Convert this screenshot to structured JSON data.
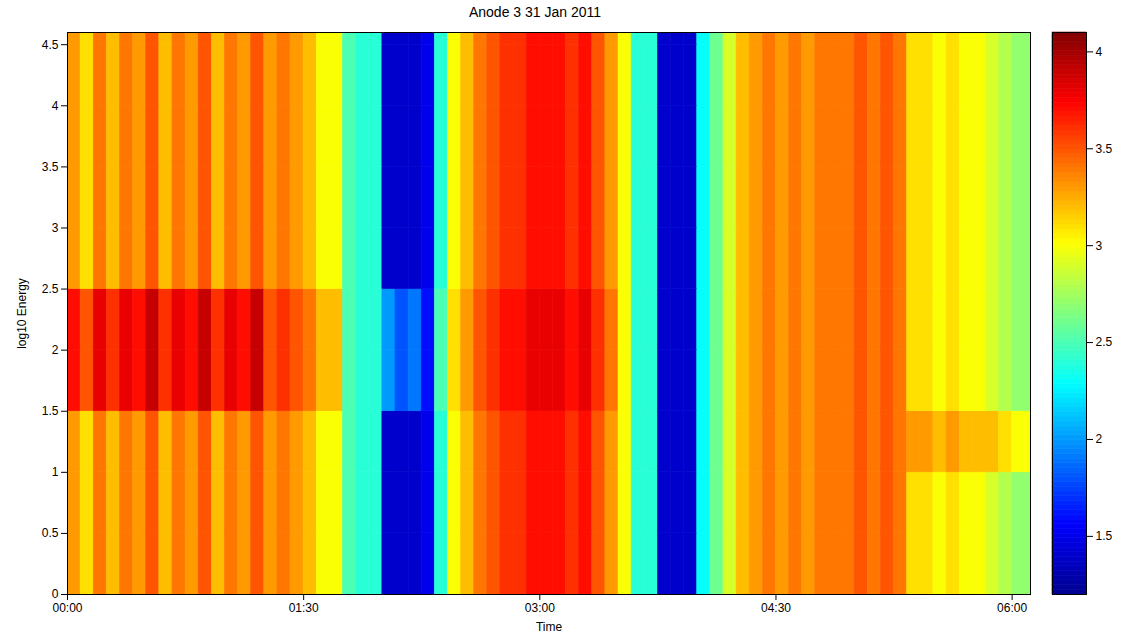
{
  "chart_data": {
    "type": "heatmap",
    "title": "Anode 3 31 Jan 2011",
    "xlabel": "Time",
    "ylabel": "log10 Energy",
    "xlim": [
      0,
      367
    ],
    "xticks": [
      {
        "value": 0,
        "label": "00:00"
      },
      {
        "value": 90,
        "label": "01:30"
      },
      {
        "value": 180,
        "label": "03:00"
      },
      {
        "value": 270,
        "label": "04:30"
      },
      {
        "value": 360,
        "label": "06:00"
      }
    ],
    "ylim": [
      0,
      4.6
    ],
    "yticks": [
      0,
      0.5,
      1,
      1.5,
      2,
      2.5,
      3,
      3.5,
      4,
      4.5
    ],
    "cells": {
      "x": [
        0,
        5,
        10,
        15,
        20,
        25,
        30,
        35,
        40,
        45,
        50,
        55,
        60,
        65,
        70,
        75,
        80,
        85,
        90,
        95,
        100,
        105,
        110,
        115,
        120,
        125,
        130,
        135,
        140,
        145,
        150,
        155,
        160,
        165,
        170,
        175,
        180,
        185,
        190,
        195,
        200,
        205,
        210,
        215,
        220,
        225,
        230,
        235,
        240,
        245,
        250,
        255,
        260,
        265,
        270,
        275,
        280,
        285,
        290,
        295,
        300,
        305,
        310,
        315,
        320,
        325,
        330,
        335,
        340,
        345,
        350,
        355,
        360,
        365,
        370
      ],
      "y": [
        0,
        0.5,
        1,
        1.5,
        2,
        2.5,
        3,
        3.5,
        4,
        4.5,
        4.6
      ],
      "values": [
        [
          3.3,
          3.1,
          3.4,
          3.2,
          3.4,
          3.3,
          3.5,
          3.2,
          3.4,
          3.3,
          3.5,
          3.2,
          3.4,
          3.3,
          3.5,
          3.3,
          3.4,
          3.3,
          3.2,
          3.0,
          3.0,
          2.5,
          2.4,
          2.4,
          1.4,
          1.4,
          1.4,
          1.5,
          2.4,
          3.0,
          3.2,
          3.4,
          3.5,
          3.6,
          3.6,
          3.7,
          3.7,
          3.7,
          3.6,
          3.7,
          3.5,
          3.3,
          3.0,
          2.4,
          2.4,
          1.4,
          1.4,
          1.4,
          2.3,
          2.6,
          2.9,
          3.2,
          3.3,
          3.4,
          3.3,
          3.4,
          3.3,
          3.4,
          3.4,
          3.4,
          3.5,
          3.4,
          3.5,
          3.4,
          3.1,
          3.1,
          3.0,
          3.1,
          3.0,
          3.0,
          2.9,
          2.8,
          2.7,
          2.7
        ],
        [
          3.3,
          3.1,
          3.4,
          3.2,
          3.4,
          3.3,
          3.5,
          3.2,
          3.4,
          3.3,
          3.5,
          3.2,
          3.4,
          3.3,
          3.5,
          3.3,
          3.4,
          3.3,
          3.2,
          3.0,
          3.0,
          2.5,
          2.4,
          2.4,
          1.4,
          1.4,
          1.4,
          1.5,
          2.4,
          3.0,
          3.2,
          3.4,
          3.5,
          3.6,
          3.6,
          3.7,
          3.7,
          3.7,
          3.6,
          3.7,
          3.5,
          3.3,
          3.0,
          2.4,
          2.4,
          1.4,
          1.4,
          1.4,
          2.3,
          2.6,
          2.9,
          3.2,
          3.3,
          3.4,
          3.3,
          3.4,
          3.3,
          3.4,
          3.4,
          3.4,
          3.5,
          3.4,
          3.5,
          3.4,
          3.1,
          3.1,
          3.0,
          3.1,
          3.0,
          3.0,
          2.9,
          2.8,
          2.7,
          2.7
        ],
        [
          3.3,
          3.1,
          3.4,
          3.2,
          3.4,
          3.3,
          3.5,
          3.2,
          3.4,
          3.3,
          3.5,
          3.2,
          3.4,
          3.3,
          3.5,
          3.3,
          3.4,
          3.3,
          3.2,
          3.0,
          3.0,
          2.5,
          2.4,
          2.4,
          1.4,
          1.4,
          1.4,
          1.5,
          2.4,
          3.0,
          3.2,
          3.4,
          3.5,
          3.6,
          3.6,
          3.7,
          3.7,
          3.7,
          3.6,
          3.7,
          3.5,
          3.3,
          3.0,
          2.4,
          2.4,
          1.4,
          1.4,
          1.4,
          2.3,
          2.6,
          2.9,
          3.2,
          3.3,
          3.4,
          3.3,
          3.4,
          3.3,
          3.4,
          3.4,
          3.4,
          3.5,
          3.4,
          3.5,
          3.4,
          3.3,
          3.3,
          3.2,
          3.3,
          3.2,
          3.2,
          3.2,
          3.1,
          3.0,
          3.0
        ],
        [
          3.7,
          3.5,
          3.8,
          3.6,
          3.8,
          3.7,
          3.9,
          3.6,
          3.8,
          3.7,
          3.9,
          3.6,
          3.8,
          3.7,
          3.9,
          3.5,
          3.6,
          3.5,
          3.4,
          3.2,
          3.2,
          2.5,
          2.4,
          2.4,
          2.0,
          1.8,
          1.9,
          1.6,
          2.5,
          3.1,
          3.3,
          3.5,
          3.6,
          3.7,
          3.7,
          3.8,
          3.8,
          3.8,
          3.7,
          3.8,
          3.6,
          3.4,
          3.0,
          2.4,
          2.4,
          1.4,
          1.4,
          1.4,
          2.3,
          2.6,
          2.9,
          3.2,
          3.3,
          3.4,
          3.3,
          3.4,
          3.3,
          3.4,
          3.4,
          3.4,
          3.5,
          3.4,
          3.5,
          3.4,
          3.1,
          3.1,
          3.0,
          3.1,
          3.0,
          3.0,
          2.9,
          2.8,
          2.7,
          2.7
        ],
        [
          3.7,
          3.5,
          3.8,
          3.6,
          3.8,
          3.7,
          3.9,
          3.6,
          3.8,
          3.7,
          3.9,
          3.6,
          3.8,
          3.7,
          3.9,
          3.5,
          3.6,
          3.5,
          3.4,
          3.2,
          3.2,
          2.5,
          2.4,
          2.4,
          2.0,
          1.8,
          1.9,
          1.6,
          2.5,
          3.1,
          3.3,
          3.5,
          3.6,
          3.7,
          3.7,
          3.8,
          3.8,
          3.8,
          3.7,
          3.8,
          3.6,
          3.4,
          3.0,
          2.4,
          2.4,
          1.4,
          1.4,
          1.4,
          2.3,
          2.6,
          2.9,
          3.2,
          3.3,
          3.4,
          3.3,
          3.4,
          3.3,
          3.4,
          3.4,
          3.4,
          3.5,
          3.4,
          3.5,
          3.4,
          3.1,
          3.1,
          3.0,
          3.1,
          3.0,
          3.0,
          2.9,
          2.8,
          2.7,
          2.7
        ],
        [
          3.3,
          3.1,
          3.4,
          3.2,
          3.4,
          3.3,
          3.5,
          3.2,
          3.4,
          3.3,
          3.5,
          3.2,
          3.4,
          3.3,
          3.5,
          3.3,
          3.4,
          3.3,
          3.2,
          3.0,
          3.0,
          2.5,
          2.4,
          2.4,
          1.4,
          1.4,
          1.4,
          1.5,
          2.4,
          3.0,
          3.2,
          3.4,
          3.5,
          3.6,
          3.6,
          3.7,
          3.7,
          3.7,
          3.6,
          3.7,
          3.5,
          3.3,
          3.0,
          2.4,
          2.4,
          1.4,
          1.4,
          1.4,
          2.3,
          2.6,
          2.9,
          3.2,
          3.3,
          3.4,
          3.3,
          3.4,
          3.3,
          3.4,
          3.4,
          3.4,
          3.5,
          3.4,
          3.5,
          3.4,
          3.1,
          3.1,
          3.0,
          3.1,
          3.0,
          3.0,
          2.9,
          2.8,
          2.7,
          2.7
        ],
        [
          3.3,
          3.1,
          3.4,
          3.2,
          3.4,
          3.3,
          3.5,
          3.2,
          3.4,
          3.3,
          3.5,
          3.2,
          3.4,
          3.3,
          3.5,
          3.3,
          3.4,
          3.3,
          3.2,
          3.0,
          3.0,
          2.5,
          2.4,
          2.4,
          1.4,
          1.4,
          1.4,
          1.5,
          2.4,
          3.0,
          3.2,
          3.4,
          3.5,
          3.6,
          3.6,
          3.7,
          3.7,
          3.7,
          3.6,
          3.7,
          3.5,
          3.3,
          3.0,
          2.4,
          2.4,
          1.4,
          1.4,
          1.4,
          2.3,
          2.6,
          2.9,
          3.2,
          3.3,
          3.4,
          3.3,
          3.4,
          3.3,
          3.4,
          3.4,
          3.4,
          3.5,
          3.4,
          3.5,
          3.4,
          3.1,
          3.1,
          3.0,
          3.1,
          3.0,
          3.0,
          2.9,
          2.8,
          2.7,
          2.7
        ],
        [
          3.3,
          3.1,
          3.4,
          3.2,
          3.4,
          3.3,
          3.5,
          3.2,
          3.4,
          3.3,
          3.5,
          3.2,
          3.4,
          3.3,
          3.5,
          3.3,
          3.4,
          3.3,
          3.2,
          3.0,
          3.0,
          2.5,
          2.4,
          2.4,
          1.4,
          1.4,
          1.4,
          1.5,
          2.4,
          3.0,
          3.2,
          3.4,
          3.5,
          3.6,
          3.6,
          3.7,
          3.7,
          3.7,
          3.6,
          3.7,
          3.5,
          3.3,
          3.0,
          2.4,
          2.4,
          1.4,
          1.4,
          1.4,
          2.3,
          2.6,
          2.9,
          3.2,
          3.3,
          3.4,
          3.3,
          3.4,
          3.3,
          3.4,
          3.4,
          3.4,
          3.5,
          3.4,
          3.5,
          3.4,
          3.1,
          3.1,
          3.0,
          3.1,
          3.0,
          3.0,
          2.9,
          2.8,
          2.7,
          2.7
        ],
        [
          3.3,
          3.1,
          3.4,
          3.2,
          3.4,
          3.3,
          3.5,
          3.2,
          3.4,
          3.3,
          3.5,
          3.2,
          3.4,
          3.3,
          3.5,
          3.3,
          3.4,
          3.3,
          3.2,
          3.0,
          3.0,
          2.5,
          2.4,
          2.4,
          1.4,
          1.4,
          1.4,
          1.5,
          2.4,
          3.0,
          3.2,
          3.4,
          3.5,
          3.6,
          3.6,
          3.7,
          3.7,
          3.7,
          3.6,
          3.7,
          3.5,
          3.3,
          3.0,
          2.4,
          2.4,
          1.4,
          1.4,
          1.4,
          2.3,
          2.6,
          2.9,
          3.2,
          3.3,
          3.4,
          3.3,
          3.4,
          3.3,
          3.4,
          3.4,
          3.4,
          3.5,
          3.4,
          3.5,
          3.4,
          3.1,
          3.1,
          3.0,
          3.1,
          3.0,
          3.0,
          2.9,
          2.8,
          2.7,
          2.7
        ],
        [
          3.3,
          3.1,
          3.4,
          3.2,
          3.4,
          3.3,
          3.5,
          3.2,
          3.4,
          3.3,
          3.5,
          3.2,
          3.4,
          3.3,
          3.5,
          3.3,
          3.4,
          3.3,
          3.2,
          3.0,
          3.0,
          2.5,
          2.4,
          2.4,
          1.4,
          1.4,
          1.4,
          1.5,
          2.4,
          3.0,
          3.2,
          3.4,
          3.5,
          3.6,
          3.6,
          3.7,
          3.7,
          3.7,
          3.6,
          3.7,
          3.5,
          3.3,
          3.0,
          2.4,
          2.4,
          1.4,
          1.4,
          1.4,
          2.3,
          2.6,
          2.9,
          3.2,
          3.3,
          3.4,
          3.3,
          3.4,
          3.3,
          3.4,
          3.4,
          3.4,
          3.5,
          3.4,
          3.5,
          3.4,
          3.1,
          3.1,
          3.0,
          3.1,
          3.0,
          3.0,
          2.9,
          2.8,
          2.7,
          2.7
        ]
      ]
    },
    "colorbar": {
      "range": [
        1.2,
        4.1
      ],
      "ticks": [
        1.5,
        2,
        2.5,
        3,
        3.5,
        4
      ]
    }
  }
}
